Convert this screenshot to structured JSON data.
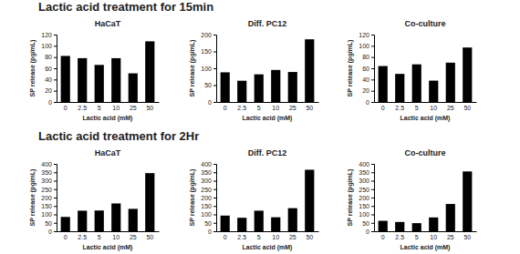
{
  "chart_data": [
    {
      "type": "bar",
      "subtitle": "Lactic acid treatment for 15min",
      "title": "HaCaT",
      "xlabel": "Lactic acid (mM)",
      "ylabel": "SP release (pg/mL)",
      "categories": [
        "0",
        "2.5",
        "5",
        "10",
        "25",
        "50"
      ],
      "values": [
        82,
        78,
        66,
        78,
        51,
        108
      ],
      "color": "#000000",
      "ylim": [
        0,
        120
      ],
      "yticks": [
        0,
        20,
        40,
        60,
        80,
        100,
        120
      ]
    },
    {
      "type": "bar",
      "title": "Diff. PC12",
      "xlabel": "Lactic acid (mM)",
      "ylabel": "SP release (pg/mL)",
      "categories": [
        "0",
        "2.5",
        "5",
        "10",
        "25",
        "50"
      ],
      "values": [
        88,
        63,
        82,
        95,
        89,
        186
      ],
      "color": "#000000",
      "ylim": [
        0,
        200
      ],
      "yticks": [
        0,
        50,
        100,
        150,
        200
      ]
    },
    {
      "type": "bar",
      "title": "Co-culture",
      "xlabel": "Lactic acid (mM)",
      "ylabel": "SP release (pg/mL)",
      "categories": [
        "0",
        "2.5",
        "5",
        "10",
        "25",
        "50"
      ],
      "values": [
        64,
        50,
        67,
        38,
        70,
        97
      ],
      "color": "#000000",
      "ylim": [
        0,
        120
      ],
      "yticks": [
        0,
        20,
        40,
        60,
        80,
        100,
        120
      ]
    },
    {
      "type": "bar",
      "subtitle": "Lactic acid treatment for 2Hr",
      "title": "HaCaT",
      "xlabel": "Lactic acid (mM)",
      "ylabel": "SP release (pg/mL)",
      "categories": [
        "0",
        "2.5",
        "5",
        "10",
        "25",
        "50"
      ],
      "values": [
        85,
        122,
        123,
        165,
        133,
        345
      ],
      "color": "#000000",
      "ylim": [
        0,
        400
      ],
      "yticks": [
        0,
        50,
        100,
        150,
        200,
        250,
        300,
        350,
        400
      ]
    },
    {
      "type": "bar",
      "title": "Diff. PC12",
      "xlabel": "Lactic acid (mM)",
      "ylabel": "SP release (pg/mL)",
      "categories": [
        "0",
        "2.5",
        "5",
        "10",
        "25",
        "50"
      ],
      "values": [
        93,
        80,
        122,
        83,
        137,
        365
      ],
      "color": "#000000",
      "ylim": [
        0,
        400
      ],
      "yticks": [
        0,
        50,
        100,
        150,
        200,
        250,
        300,
        350,
        400
      ]
    },
    {
      "type": "bar",
      "title": "Co-culture",
      "xlabel": "Lactic acid (mM)",
      "ylabel": "SP release (pg/mL)",
      "categories": [
        "0",
        "2.5",
        "5",
        "10",
        "25",
        "50"
      ],
      "values": [
        62,
        55,
        48,
        82,
        162,
        355
      ],
      "color": "#000000",
      "ylim": [
        0,
        400
      ],
      "yticks": [
        0,
        50,
        100,
        150,
        200,
        250,
        300,
        350,
        400
      ]
    }
  ]
}
